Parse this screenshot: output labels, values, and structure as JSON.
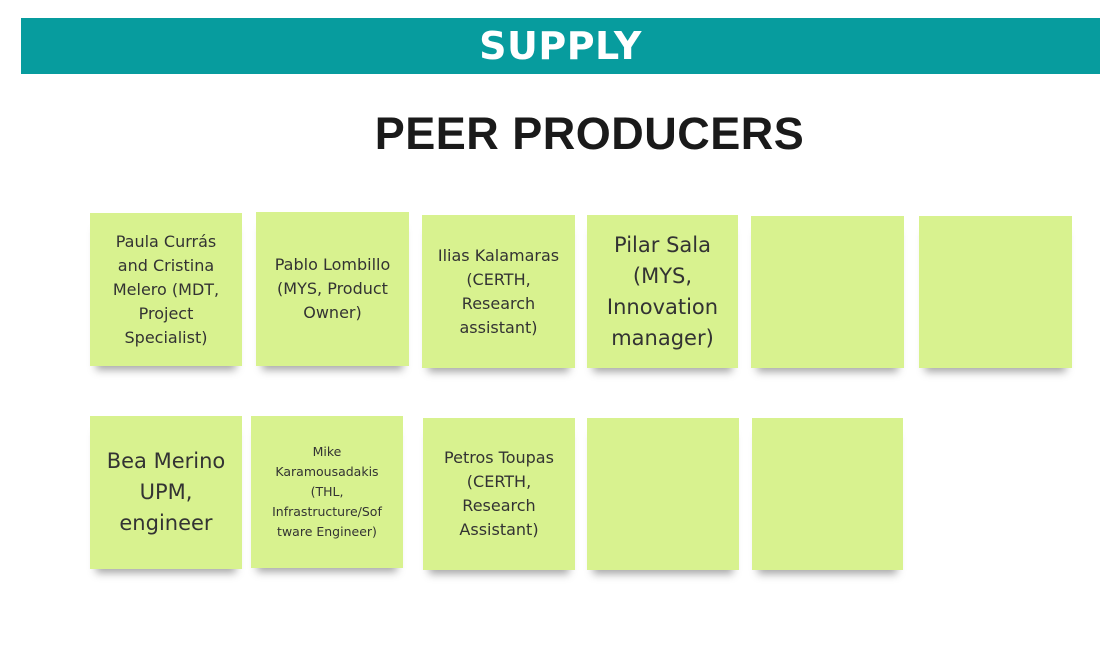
{
  "banner": {
    "title": "SUPPLY"
  },
  "heading": {
    "title": "PEER PRODUCERS"
  },
  "colors": {
    "banner": "#079c9e",
    "note": "#d8f28f",
    "heading_text": "#1a1a1a",
    "note_text": "#333333"
  },
  "notes_row1": [
    {
      "text": "Paula Currás\nand Cristina\nMelero (MDT,\nProject\nSpecialist)"
    },
    {
      "text": "Pablo Lombillo\n(MYS, Product\nOwner)"
    },
    {
      "text": "Ilias Kalamaras\n(CERTH,\nResearch\nassistant)"
    },
    {
      "text": "Pilar Sala\n(MYS,\nInnovation\nmanager)"
    },
    {
      "text": ""
    },
    {
      "text": ""
    }
  ],
  "notes_row2": [
    {
      "text": "Bea Merino\nUPM,\nengineer"
    },
    {
      "text": "Mike\nKaramousadakis\n(THL,\nInfrastructure/Sof\ntware Engineer)"
    },
    {
      "text": "Petros Toupas\n(CERTH,\nResearch\nAssistant)"
    },
    {
      "text": ""
    },
    {
      "text": ""
    }
  ]
}
